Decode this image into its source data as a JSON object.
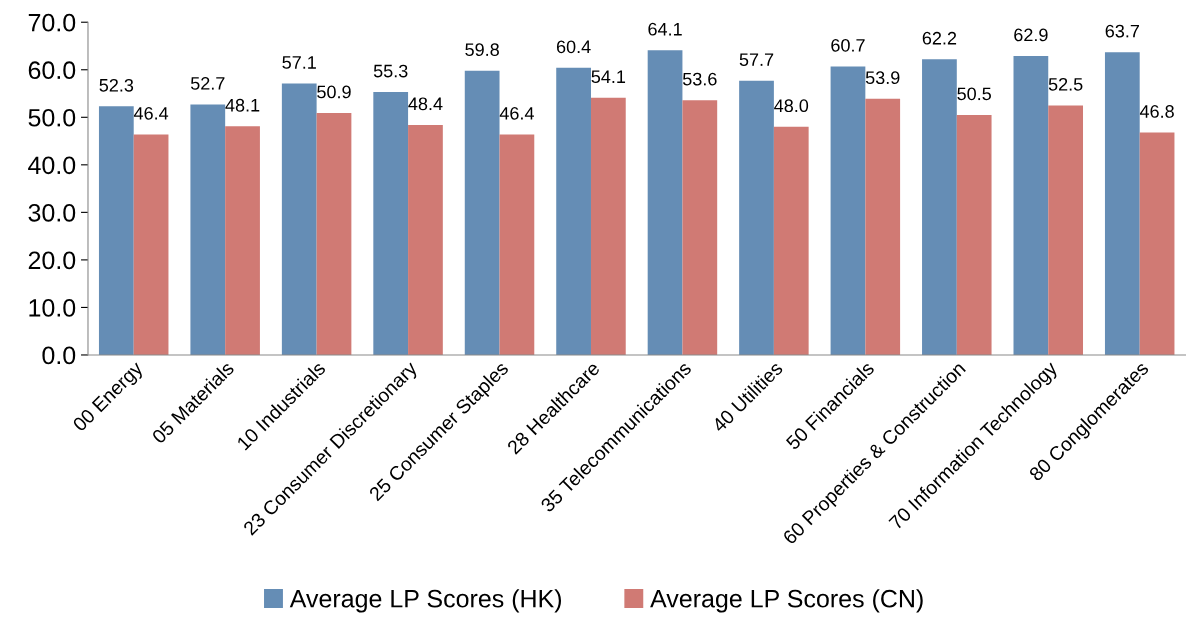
{
  "chart_data": {
    "type": "bar",
    "categories": [
      "00 Energy",
      "05 Materials",
      "10 Industrials",
      "23 Consumer Discretionary",
      "25 Consumer Staples",
      "28 Healthcare",
      "35 Telecommunications",
      "40 Utilities",
      "50 Financials",
      "60 Properties & Construction",
      "70 Information Technology",
      "80 Conglomerates"
    ],
    "series": [
      {
        "name": "Average LP Scores (HK)",
        "color": "#658db5",
        "values": [
          52.3,
          52.7,
          57.1,
          55.3,
          59.8,
          60.4,
          64.1,
          57.7,
          60.7,
          62.2,
          62.9,
          63.7
        ],
        "value_labels": [
          "52.3",
          "52.7",
          "57.1",
          "55.3",
          "59.8",
          "60.4",
          "64.1",
          "57.7",
          "60.7",
          "62.2",
          "62.9",
          "63.7"
        ]
      },
      {
        "name": "Average LP Scores (CN)",
        "color": "#d07a74",
        "values": [
          46.4,
          48.1,
          50.9,
          48.4,
          46.4,
          54.1,
          53.6,
          48.0,
          53.9,
          50.5,
          52.5,
          46.8
        ],
        "value_labels": [
          "46.4",
          "48.1",
          "50.9",
          "48.4",
          "46.4",
          "54.1",
          "53.6",
          "48.0",
          "53.9",
          "50.5",
          "52.5",
          "46.8"
        ]
      }
    ],
    "ylim": [
      0,
      70
    ],
    "yticks": [
      {
        "value": 0,
        "label": "0.0"
      },
      {
        "value": 10,
        "label": "10.0"
      },
      {
        "value": 20,
        "label": "20.0"
      },
      {
        "value": 30,
        "label": "30.0"
      },
      {
        "value": 40,
        "label": "40.0"
      },
      {
        "value": 50,
        "label": "50.0"
      },
      {
        "value": 60,
        "label": "60.0"
      },
      {
        "value": 70,
        "label": "70.0"
      }
    ],
    "grid": false,
    "legend": "bottom"
  }
}
